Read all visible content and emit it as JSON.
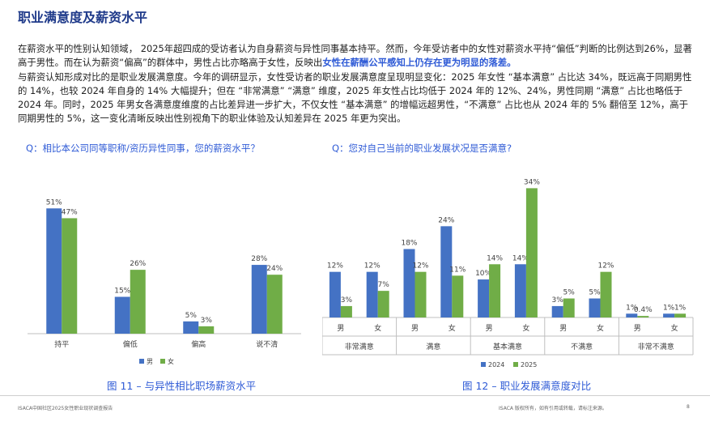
{
  "page": {
    "title": "职业满意度及薪资水平",
    "paragraph1": {
      "before": "在薪资水平的性别认知领域， 2025年超四成的受访者认为自身薪资与异性同事基本持平。然而，今年受访者中的女性对薪资水平持“偏低”判断的比例达到26%，显著高于男性。而在认为薪资“偏高”的群体中，男性占比亦略高于女性，反映出",
      "highlight": "女性在薪酬公平感知上仍存在更为明显的落差。"
    },
    "paragraph2": "与薪资认知形成对比的是职业发展满意度。今年的调研显示，女性受访者的职业发展满意度呈现明显变化：2025 年女性 “基本满意” 占比达 34%，既远高于同期男性的 14%，也较 2024 年自身的 14% 大幅提升；但在 “非常满意” “满意” 维度，2025 年女性占比均低于 2024 年的 12%、24%，男性同期 “满意” 占比也略低于 2024 年。同时，2025 年男女各满意度维度的占比差异进一步扩大，不仅女性 “基本满意” 的增幅远超男性，“不满意” 占比也从 2024 年的 5% 翻倍至 12%，高于同期男性的 5%，这一变化清晰反映出性别视角下的职业体验及认知差异在 2025 年更为突出。",
    "footer_left": "ISACA中国社区2025女性职业现状调查报告",
    "footer_right": "ISACA 版权所有，如有引用或转载，请标注来源。",
    "page_number": "8"
  },
  "colors": {
    "blue": "#4472c4",
    "green": "#70ad47",
    "title": "#1f3a8a",
    "accent": "#2f5bd6"
  },
  "chart_data": [
    {
      "type": "bar",
      "question": "Q：相比本公司同等职称/资历异性同事，您的薪资水平？",
      "caption": "图 11 – 与异性相比职场薪资水平",
      "categories": [
        "持平",
        "偏低",
        "偏高",
        "说不清"
      ],
      "series": [
        {
          "name": "男",
          "values": [
            51,
            15,
            5,
            28
          ],
          "labels": [
            "51%",
            "15%",
            "5%",
            "28%"
          ],
          "color": "#4472c4"
        },
        {
          "name": "女",
          "values": [
            47,
            26,
            3,
            24
          ],
          "labels": [
            "47%",
            "26%",
            "3%",
            "24%"
          ],
          "color": "#70ad47"
        }
      ],
      "ylim": [
        0,
        60
      ],
      "legend": "bottom",
      "grid": false
    },
    {
      "type": "bar",
      "question": "Q：您对自己当前的职业发展状况是否满意?",
      "caption": "图 12 – 职业发展满意度对比",
      "groups": [
        "非常满意",
        "满意",
        "基本满意",
        "不满意",
        "非常不满意"
      ],
      "genders": [
        "男",
        "女"
      ],
      "series": [
        {
          "name": "2024",
          "values": [
            12,
            12,
            18,
            24,
            10,
            14,
            3,
            5,
            1,
            1
          ],
          "labels": [
            "12%",
            "12%",
            "18%",
            "24%",
            "10%",
            "14%",
            "3%",
            "5%",
            "1%",
            "1%"
          ],
          "color": "#4472c4"
        },
        {
          "name": "2025",
          "values": [
            3,
            7,
            12,
            11,
            14,
            34,
            5,
            12,
            0.4,
            1
          ],
          "labels": [
            "3%",
            "7%",
            "12%",
            "11%",
            "14%",
            "34%",
            "5%",
            "12%",
            "0.4%",
            "1%"
          ],
          "color": "#70ad47"
        }
      ],
      "ylim": [
        0,
        36
      ],
      "legend": "bottom",
      "grid": false
    }
  ]
}
